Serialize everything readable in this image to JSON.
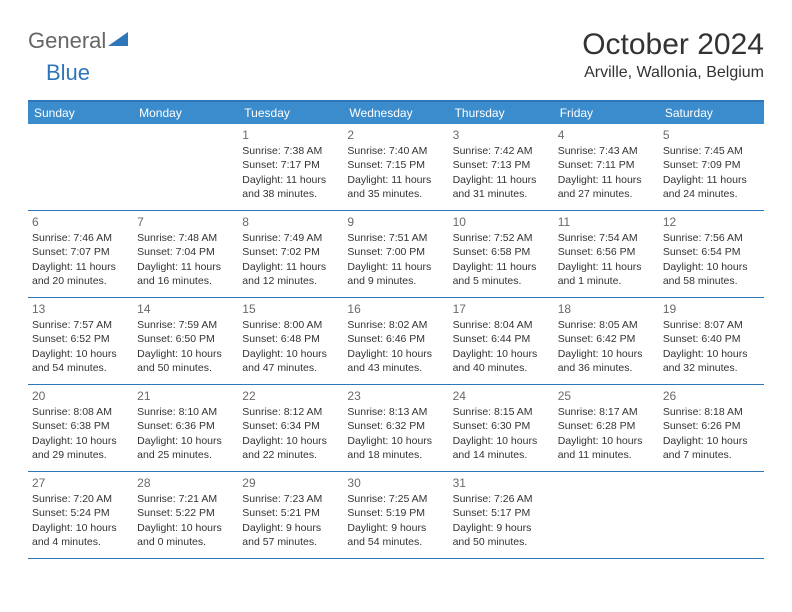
{
  "logo": {
    "part1": "General",
    "part2": "Blue"
  },
  "title": "October 2024",
  "location": "Arville, Wallonia, Belgium",
  "colors": {
    "header_bar": "#3b8ccc",
    "rule": "#2f76b8",
    "text": "#333333",
    "daynum": "#6a6a6a"
  },
  "weekdays": [
    "Sunday",
    "Monday",
    "Tuesday",
    "Wednesday",
    "Thursday",
    "Friday",
    "Saturday"
  ],
  "weeks": [
    [
      null,
      null,
      {
        "n": "1",
        "sr": "Sunrise: 7:38 AM",
        "ss": "Sunset: 7:17 PM",
        "d1": "Daylight: 11 hours",
        "d2": "and 38 minutes."
      },
      {
        "n": "2",
        "sr": "Sunrise: 7:40 AM",
        "ss": "Sunset: 7:15 PM",
        "d1": "Daylight: 11 hours",
        "d2": "and 35 minutes."
      },
      {
        "n": "3",
        "sr": "Sunrise: 7:42 AM",
        "ss": "Sunset: 7:13 PM",
        "d1": "Daylight: 11 hours",
        "d2": "and 31 minutes."
      },
      {
        "n": "4",
        "sr": "Sunrise: 7:43 AM",
        "ss": "Sunset: 7:11 PM",
        "d1": "Daylight: 11 hours",
        "d2": "and 27 minutes."
      },
      {
        "n": "5",
        "sr": "Sunrise: 7:45 AM",
        "ss": "Sunset: 7:09 PM",
        "d1": "Daylight: 11 hours",
        "d2": "and 24 minutes."
      }
    ],
    [
      {
        "n": "6",
        "sr": "Sunrise: 7:46 AM",
        "ss": "Sunset: 7:07 PM",
        "d1": "Daylight: 11 hours",
        "d2": "and 20 minutes."
      },
      {
        "n": "7",
        "sr": "Sunrise: 7:48 AM",
        "ss": "Sunset: 7:04 PM",
        "d1": "Daylight: 11 hours",
        "d2": "and 16 minutes."
      },
      {
        "n": "8",
        "sr": "Sunrise: 7:49 AM",
        "ss": "Sunset: 7:02 PM",
        "d1": "Daylight: 11 hours",
        "d2": "and 12 minutes."
      },
      {
        "n": "9",
        "sr": "Sunrise: 7:51 AM",
        "ss": "Sunset: 7:00 PM",
        "d1": "Daylight: 11 hours",
        "d2": "and 9 minutes."
      },
      {
        "n": "10",
        "sr": "Sunrise: 7:52 AM",
        "ss": "Sunset: 6:58 PM",
        "d1": "Daylight: 11 hours",
        "d2": "and 5 minutes."
      },
      {
        "n": "11",
        "sr": "Sunrise: 7:54 AM",
        "ss": "Sunset: 6:56 PM",
        "d1": "Daylight: 11 hours",
        "d2": "and 1 minute."
      },
      {
        "n": "12",
        "sr": "Sunrise: 7:56 AM",
        "ss": "Sunset: 6:54 PM",
        "d1": "Daylight: 10 hours",
        "d2": "and 58 minutes."
      }
    ],
    [
      {
        "n": "13",
        "sr": "Sunrise: 7:57 AM",
        "ss": "Sunset: 6:52 PM",
        "d1": "Daylight: 10 hours",
        "d2": "and 54 minutes."
      },
      {
        "n": "14",
        "sr": "Sunrise: 7:59 AM",
        "ss": "Sunset: 6:50 PM",
        "d1": "Daylight: 10 hours",
        "d2": "and 50 minutes."
      },
      {
        "n": "15",
        "sr": "Sunrise: 8:00 AM",
        "ss": "Sunset: 6:48 PM",
        "d1": "Daylight: 10 hours",
        "d2": "and 47 minutes."
      },
      {
        "n": "16",
        "sr": "Sunrise: 8:02 AM",
        "ss": "Sunset: 6:46 PM",
        "d1": "Daylight: 10 hours",
        "d2": "and 43 minutes."
      },
      {
        "n": "17",
        "sr": "Sunrise: 8:04 AM",
        "ss": "Sunset: 6:44 PM",
        "d1": "Daylight: 10 hours",
        "d2": "and 40 minutes."
      },
      {
        "n": "18",
        "sr": "Sunrise: 8:05 AM",
        "ss": "Sunset: 6:42 PM",
        "d1": "Daylight: 10 hours",
        "d2": "and 36 minutes."
      },
      {
        "n": "19",
        "sr": "Sunrise: 8:07 AM",
        "ss": "Sunset: 6:40 PM",
        "d1": "Daylight: 10 hours",
        "d2": "and 32 minutes."
      }
    ],
    [
      {
        "n": "20",
        "sr": "Sunrise: 8:08 AM",
        "ss": "Sunset: 6:38 PM",
        "d1": "Daylight: 10 hours",
        "d2": "and 29 minutes."
      },
      {
        "n": "21",
        "sr": "Sunrise: 8:10 AM",
        "ss": "Sunset: 6:36 PM",
        "d1": "Daylight: 10 hours",
        "d2": "and 25 minutes."
      },
      {
        "n": "22",
        "sr": "Sunrise: 8:12 AM",
        "ss": "Sunset: 6:34 PM",
        "d1": "Daylight: 10 hours",
        "d2": "and 22 minutes."
      },
      {
        "n": "23",
        "sr": "Sunrise: 8:13 AM",
        "ss": "Sunset: 6:32 PM",
        "d1": "Daylight: 10 hours",
        "d2": "and 18 minutes."
      },
      {
        "n": "24",
        "sr": "Sunrise: 8:15 AM",
        "ss": "Sunset: 6:30 PM",
        "d1": "Daylight: 10 hours",
        "d2": "and 14 minutes."
      },
      {
        "n": "25",
        "sr": "Sunrise: 8:17 AM",
        "ss": "Sunset: 6:28 PM",
        "d1": "Daylight: 10 hours",
        "d2": "and 11 minutes."
      },
      {
        "n": "26",
        "sr": "Sunrise: 8:18 AM",
        "ss": "Sunset: 6:26 PM",
        "d1": "Daylight: 10 hours",
        "d2": "and 7 minutes."
      }
    ],
    [
      {
        "n": "27",
        "sr": "Sunrise: 7:20 AM",
        "ss": "Sunset: 5:24 PM",
        "d1": "Daylight: 10 hours",
        "d2": "and 4 minutes."
      },
      {
        "n": "28",
        "sr": "Sunrise: 7:21 AM",
        "ss": "Sunset: 5:22 PM",
        "d1": "Daylight: 10 hours",
        "d2": "and 0 minutes."
      },
      {
        "n": "29",
        "sr": "Sunrise: 7:23 AM",
        "ss": "Sunset: 5:21 PM",
        "d1": "Daylight: 9 hours",
        "d2": "and 57 minutes."
      },
      {
        "n": "30",
        "sr": "Sunrise: 7:25 AM",
        "ss": "Sunset: 5:19 PM",
        "d1": "Daylight: 9 hours",
        "d2": "and 54 minutes."
      },
      {
        "n": "31",
        "sr": "Sunrise: 7:26 AM",
        "ss": "Sunset: 5:17 PM",
        "d1": "Daylight: 9 hours",
        "d2": "and 50 minutes."
      },
      null,
      null
    ]
  ]
}
